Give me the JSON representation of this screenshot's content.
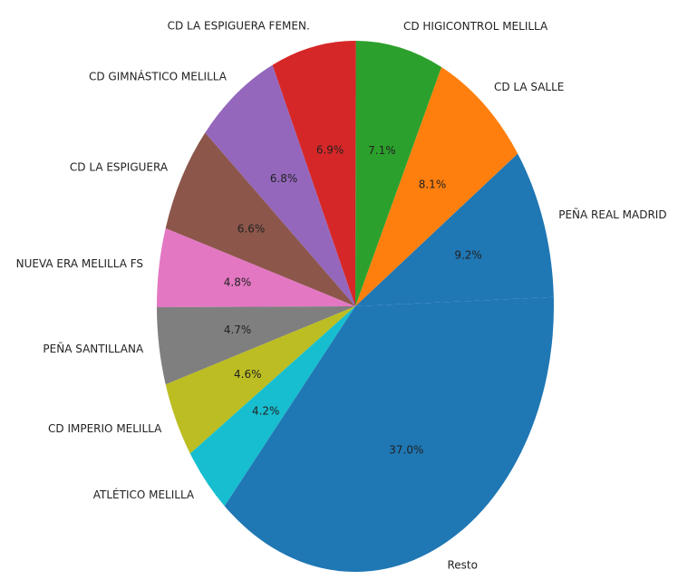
{
  "chart_data": {
    "type": "pie",
    "categories": [
      "PEÑA REAL MADRID",
      "CD LA SALLE",
      "CD HIGICONTROL MELILLA",
      "CD LA ESPIGUERA FEMEN.",
      "CD GIMNÁSTICO MELILLA",
      "CD LA ESPIGUERA",
      "NUEVA ERA MELILLA FS",
      "PEÑA SANTILLANA",
      "CD IMPERIO MELILLA",
      "ATLÉTICO MELILLA",
      "Resto"
    ],
    "values": [
      9.2,
      8.1,
      7.1,
      6.9,
      6.8,
      6.6,
      4.8,
      4.7,
      4.6,
      4.2,
      37.0
    ],
    "value_labels": [
      "9.2%",
      "8.1%",
      "7.1%",
      "6.9%",
      "6.8%",
      "6.6%",
      "4.8%",
      "4.7%",
      "4.6%",
      "4.2%",
      "37.0%"
    ],
    "colors": [
      "#1f77b4",
      "#ff7f0e",
      "#2ca02c",
      "#d62728",
      "#9467bd",
      "#8c564b",
      "#e377c2",
      "#7f7f7f",
      "#bcbd22",
      "#17becf",
      "#1f77b4"
    ]
  }
}
